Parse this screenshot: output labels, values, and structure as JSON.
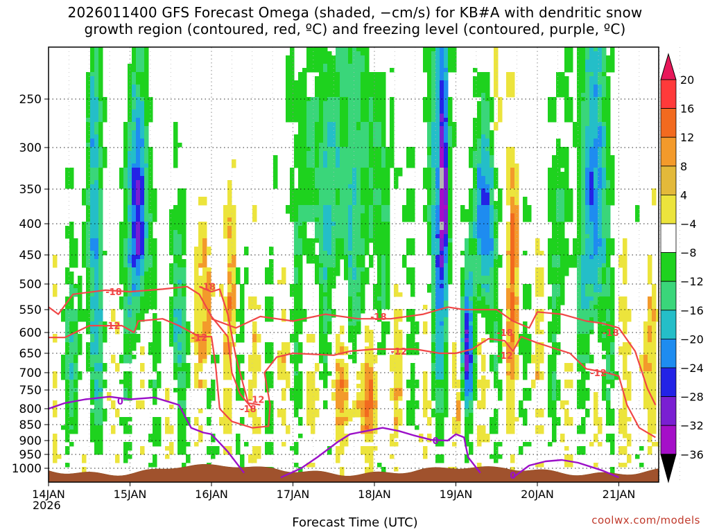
{
  "page": {
    "title": "2026011400 GFS Forecast Omega (shaded, −cm/s) for KB#A with dendritic snow\ngrowth region (contoured, red, ºC) and freezing level (contoured, purple, ºC)",
    "watermark": "coolwx.com/models",
    "x_axis_title": "Forecast Time (UTC)",
    "year_label": "2026"
  },
  "chart_data": {
    "type": "heatmap",
    "x_ticks": [
      "14JAN",
      "15JAN",
      "16JAN",
      "17JAN",
      "18JAN",
      "19JAN",
      "20JAN",
      "21JAN"
    ],
    "x_range_days": [
      0,
      7.47
    ],
    "y_axis": "pressure (hPa), reversed",
    "y_range": [
      200,
      1030
    ],
    "y_ticks": [
      250,
      300,
      350,
      400,
      450,
      500,
      550,
      600,
      650,
      700,
      750,
      800,
      850,
      900,
      950,
      1000
    ],
    "colorbar": {
      "labels": [
        "20",
        "16",
        "12",
        "8",
        "4",
        "−4",
        "−8",
        "−12",
        "−16",
        "−20",
        "−24",
        "−28",
        "−32",
        "−36"
      ],
      "levels": [
        20,
        16,
        12,
        8,
        4,
        -4,
        -8,
        -12,
        -16,
        -20,
        -24,
        -28,
        -32,
        -36
      ],
      "colors": [
        "#ff3a3a",
        "#f26a1f",
        "#f39a2b",
        "#e3b93a",
        "#ece43c",
        "#ffffff",
        "#1ed21e",
        "#3ad67a",
        "#24bec8",
        "#1e8cf0",
        "#2323e6",
        "#7a1fd2",
        "#a50fc8",
        "#b4b4b4"
      ],
      "top_arrow_color": "#e8185a",
      "bottom_arrow_color": "#000000"
    },
    "contour_labels": {
      "dendritic_snow": [
        "-18",
        "-12",
        "-18",
        "-12",
        "-12",
        "-18",
        "-18",
        "-12",
        "-18",
        "-12",
        "-12",
        "-18"
      ],
      "freezing_level": [
        "0",
        "0",
        "0"
      ]
    },
    "dendritic_contours": [
      {
        "level": -18,
        "points": [
          [
            0.0,
            545
          ],
          [
            0.12,
            560
          ],
          [
            0.3,
            520
          ],
          [
            0.7,
            512
          ],
          [
            1.0,
            515
          ],
          [
            1.4,
            510
          ],
          [
            1.7,
            505
          ],
          [
            1.85,
            520
          ],
          [
            2.0,
            565
          ],
          [
            2.2,
            610
          ],
          [
            2.25,
            700
          ],
          [
            2.35,
            760
          ],
          [
            2.5,
            800
          ]
        ]
      },
      {
        "level": -18,
        "points": [
          [
            1.85,
            505
          ],
          [
            2.0,
            515
          ],
          [
            2.1,
            510
          ],
          [
            2.2,
            560
          ],
          [
            2.3,
            660
          ],
          [
            2.45,
            785
          ],
          [
            2.6,
            790
          ]
        ]
      },
      {
        "level": -12,
        "points": [
          [
            0.0,
            612
          ],
          [
            0.2,
            612
          ],
          [
            0.5,
            585
          ],
          [
            0.9,
            585
          ],
          [
            1.05,
            600
          ],
          [
            1.1,
            575
          ],
          [
            1.4,
            570
          ],
          [
            1.6,
            585
          ],
          [
            1.85,
            610
          ],
          [
            2.0,
            610
          ],
          [
            2.05,
            680
          ],
          [
            2.1,
            800
          ],
          [
            2.25,
            840
          ],
          [
            2.5,
            860
          ],
          [
            2.7,
            855
          ],
          [
            2.72,
            790
          ],
          [
            2.65,
            700
          ],
          [
            2.8,
            660
          ],
          [
            3.0,
            650
          ],
          [
            3.5,
            655
          ],
          [
            3.7,
            645
          ],
          [
            4.0,
            640
          ],
          [
            4.5,
            640
          ],
          [
            4.8,
            650
          ],
          [
            5.0,
            650
          ]
        ]
      },
      {
        "level": -18,
        "points": [
          [
            2.0,
            570
          ],
          [
            2.3,
            590
          ],
          [
            2.6,
            565
          ],
          [
            3.0,
            575
          ],
          [
            3.4,
            560
          ],
          [
            3.8,
            570
          ],
          [
            4.2,
            570
          ],
          [
            4.6,
            560
          ],
          [
            4.9,
            545
          ],
          [
            5.1,
            550
          ],
          [
            5.5,
            550
          ],
          [
            5.7,
            575
          ],
          [
            5.9,
            590
          ],
          [
            6.0,
            555
          ],
          [
            6.3,
            560
          ],
          [
            6.6,
            575
          ],
          [
            6.8,
            580
          ],
          [
            7.0,
            590
          ],
          [
            7.2,
            645
          ],
          [
            7.35,
            745
          ],
          [
            7.45,
            790
          ]
        ]
      },
      {
        "level": -12,
        "points": [
          [
            5.0,
            650
          ],
          [
            5.2,
            640
          ],
          [
            5.4,
            615
          ],
          [
            5.6,
            620
          ],
          [
            5.7,
            645
          ],
          [
            5.8,
            610
          ],
          [
            6.0,
            625
          ],
          [
            6.4,
            650
          ],
          [
            6.6,
            690
          ],
          [
            6.85,
            700
          ],
          [
            7.0,
            710
          ],
          [
            7.1,
            790
          ],
          [
            7.25,
            860
          ],
          [
            7.45,
            890
          ]
        ]
      }
    ],
    "freezing_contours": [
      {
        "level": 0,
        "points": [
          [
            0.0,
            800
          ],
          [
            0.2,
            785
          ],
          [
            0.45,
            775
          ],
          [
            0.75,
            768
          ],
          [
            1.0,
            775
          ],
          [
            1.3,
            770
          ],
          [
            1.6,
            790
          ],
          [
            1.75,
            860
          ],
          [
            1.9,
            875
          ],
          [
            2.0,
            880
          ],
          [
            2.2,
            940
          ],
          [
            2.4,
            1010
          ]
        ]
      },
      {
        "level": 0,
        "points": [
          [
            2.85,
            1020
          ],
          [
            3.1,
            1000
          ],
          [
            3.3,
            960
          ],
          [
            3.55,
            905
          ],
          [
            3.7,
            880
          ],
          [
            3.9,
            870
          ],
          [
            4.1,
            860
          ],
          [
            4.3,
            870
          ],
          [
            4.5,
            885
          ],
          [
            4.7,
            898
          ],
          [
            4.9,
            900
          ],
          [
            5.0,
            880
          ],
          [
            5.1,
            890
          ],
          [
            5.15,
            960
          ],
          [
            5.3,
            1010
          ]
        ]
      },
      {
        "level": 0,
        "points": [
          [
            5.7,
            1020
          ],
          [
            5.9,
            990
          ],
          [
            6.1,
            975
          ],
          [
            6.3,
            970
          ],
          [
            6.5,
            980
          ],
          [
            6.8,
            1005
          ],
          [
            7.0,
            1020
          ]
        ]
      }
    ]
  }
}
